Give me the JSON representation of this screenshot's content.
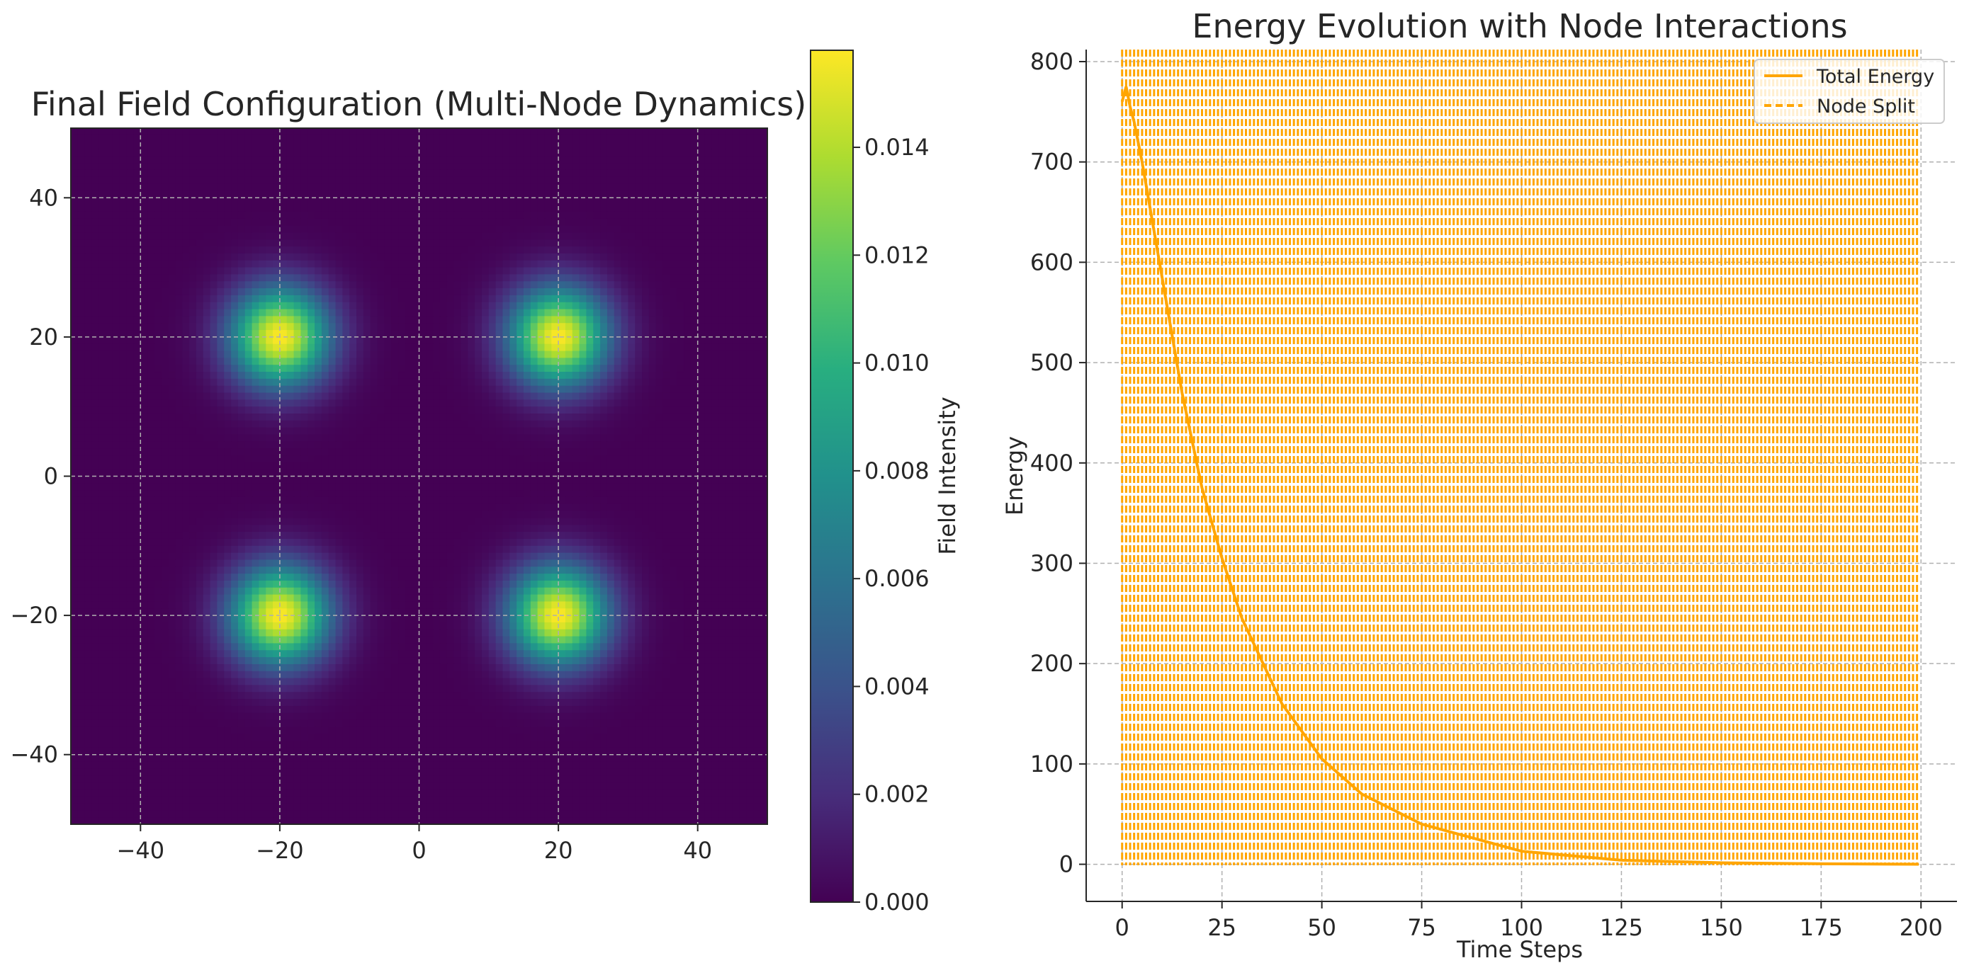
{
  "chart_data": [
    {
      "type": "heatmap",
      "title": "Final Field Configuration (Multi-Node Dynamics)",
      "xlabel": "",
      "ylabel": "",
      "xlim": [
        -50,
        50
      ],
      "ylim": [
        -50,
        50
      ],
      "x_ticks": [
        -40,
        -20,
        0,
        20,
        40
      ],
      "y_ticks": [
        -40,
        -20,
        0,
        20,
        40
      ],
      "x_tick_labels": [
        "−40",
        "−20",
        "0",
        "20",
        "40"
      ],
      "y_tick_labels": [
        "−40",
        "−20",
        "0",
        "20",
        "40"
      ],
      "grid": true,
      "colormap": "viridis",
      "peaks": [
        {
          "x": -20,
          "y": 20,
          "value": 0.0158
        },
        {
          "x": 20,
          "y": 20,
          "value": 0.0158
        },
        {
          "x": -20,
          "y": -20,
          "value": 0.0158
        },
        {
          "x": 20,
          "y": -20,
          "value": 0.0158
        }
      ],
      "peak_sigma": 5,
      "colorbar": {
        "label": "Field Intensity",
        "range": [
          0.0,
          0.0158
        ],
        "ticks": [
          0.0,
          0.002,
          0.004,
          0.006,
          0.008,
          0.01,
          0.012,
          0.014
        ],
        "tick_labels": [
          "0.000",
          "0.002",
          "0.004",
          "0.006",
          "0.008",
          "0.010",
          "0.012",
          "0.014"
        ]
      }
    },
    {
      "type": "line",
      "title": "Energy Evolution with Node Interactions",
      "xlabel": "Time Steps",
      "ylabel": "Energy",
      "xlim": [
        -9,
        209
      ],
      "ylim": [
        -37,
        812
      ],
      "x_ticks": [
        0,
        25,
        50,
        75,
        100,
        125,
        150,
        175,
        200
      ],
      "y_ticks": [
        0,
        100,
        200,
        300,
        400,
        500,
        600,
        700,
        800
      ],
      "grid": true,
      "legend_position": "top-right",
      "series": [
        {
          "name": "Total Energy",
          "style": "solid",
          "color": "#ffa500",
          "x": [
            0,
            1,
            2,
            3,
            5,
            10,
            15,
            20,
            25,
            30,
            40,
            50,
            60,
            75,
            100,
            125,
            150,
            175,
            200
          ],
          "y": [
            760,
            775,
            755,
            740,
            700,
            585,
            470,
            375,
            305,
            245,
            160,
            105,
            70,
            40,
            13,
            4,
            1.5,
            0.5,
            0
          ]
        },
        {
          "name": "Node Split",
          "style": "dashed-vertical-lines",
          "color": "#ffa500",
          "x_positions": "every time step from 0 to 200"
        }
      ]
    }
  ],
  "colors": {
    "accent": "#ffa500",
    "text": "#262626",
    "grid": "#b0b0b0"
  }
}
